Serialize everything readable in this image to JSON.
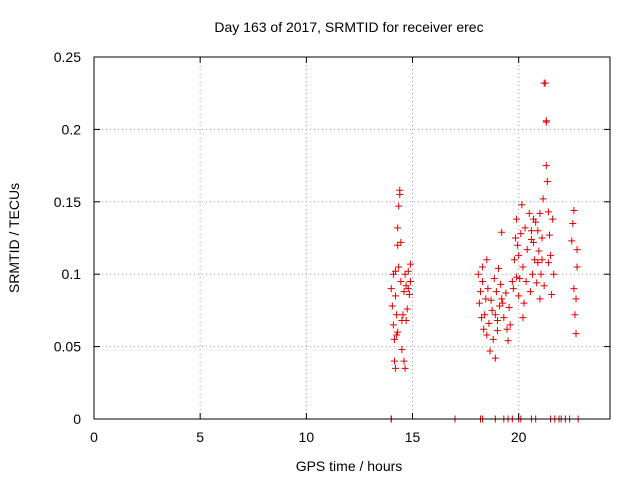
{
  "chart_data": {
    "type": "scatter",
    "title": "Day 163 of 2017, SRMTID for receiver erec",
    "xlabel": "GPS time / hours",
    "ylabel": "SRMTID / TECUs",
    "xlim": [
      0,
      24.3
    ],
    "ylim": [
      0,
      0.25
    ],
    "xticks": [
      0,
      5,
      10,
      15,
      20
    ],
    "xtick_labels": [
      "0",
      "5",
      "10",
      "15",
      "20"
    ],
    "yticks": [
      0,
      0.05,
      0.1,
      0.15,
      0.2,
      0.25
    ],
    "ytick_labels": [
      "0",
      "0.05",
      "0.1",
      "0.15",
      "0.2",
      "0.25"
    ],
    "grid": true,
    "marker": "+",
    "color": "#e00000",
    "series": [
      {
        "name": "SRMTID",
        "points": [
          [
            14.0,
            0.0
          ],
          [
            14.0,
            0.0
          ],
          [
            17.0,
            0.0
          ],
          [
            18.2,
            0.0
          ],
          [
            18.3,
            0.0
          ],
          [
            18.9,
            0.0
          ],
          [
            19.3,
            0.0
          ],
          [
            19.5,
            0.0
          ],
          [
            19.7,
            0.0
          ],
          [
            20.0,
            0.0
          ],
          [
            20.1,
            0.0
          ],
          [
            20.6,
            0.0
          ],
          [
            20.8,
            0.0
          ],
          [
            21.5,
            0.0
          ],
          [
            21.7,
            0.0
          ],
          [
            21.9,
            0.0
          ],
          [
            22.0,
            0.0
          ],
          [
            22.2,
            0.0
          ],
          [
            22.4,
            0.0
          ],
          [
            22.8,
            0.0
          ],
          [
            14.0,
            0.09
          ],
          [
            14.05,
            0.078
          ],
          [
            14.1,
            0.065
          ],
          [
            14.1,
            0.1
          ],
          [
            14.15,
            0.055
          ],
          [
            14.15,
            0.04
          ],
          [
            14.2,
            0.085
          ],
          [
            14.2,
            0.102
          ],
          [
            14.25,
            0.058
          ],
          [
            14.3,
            0.12
          ],
          [
            14.3,
            0.132
          ],
          [
            14.35,
            0.147
          ],
          [
            14.4,
            0.155
          ],
          [
            14.4,
            0.158
          ],
          [
            14.35,
            0.105
          ],
          [
            14.45,
            0.095
          ],
          [
            14.45,
            0.122
          ],
          [
            14.5,
            0.068
          ],
          [
            14.55,
            0.072
          ],
          [
            14.6,
            0.04
          ],
          [
            14.6,
            0.088
          ],
          [
            14.65,
            0.1
          ],
          [
            14.7,
            0.092
          ],
          [
            14.75,
            0.076
          ],
          [
            14.8,
            0.102
          ],
          [
            14.85,
            0.086
          ],
          [
            14.9,
            0.107
          ],
          [
            14.9,
            0.095
          ],
          [
            14.2,
            0.035
          ],
          [
            14.3,
            0.06
          ],
          [
            14.5,
            0.048
          ],
          [
            14.7,
            0.068
          ],
          [
            14.8,
            0.09
          ],
          [
            14.25,
            0.072
          ],
          [
            14.65,
            0.035
          ],
          [
            18.1,
            0.1
          ],
          [
            18.15,
            0.08
          ],
          [
            18.2,
            0.088
          ],
          [
            18.25,
            0.07
          ],
          [
            18.3,
            0.095
          ],
          [
            18.35,
            0.062
          ],
          [
            18.4,
            0.072
          ],
          [
            18.45,
            0.083
          ],
          [
            18.5,
            0.058
          ],
          [
            18.55,
            0.09
          ],
          [
            18.6,
            0.066
          ],
          [
            18.65,
            0.047
          ],
          [
            18.7,
            0.082
          ],
          [
            18.75,
            0.075
          ],
          [
            18.8,
            0.055
          ],
          [
            18.85,
            0.097
          ],
          [
            18.9,
            0.072
          ],
          [
            18.95,
            0.088
          ],
          [
            19.0,
            0.061
          ],
          [
            19.05,
            0.104
          ],
          [
            19.1,
            0.078
          ],
          [
            19.15,
            0.093
          ],
          [
            19.2,
            0.129
          ],
          [
            19.25,
            0.08
          ],
          [
            19.3,
            0.07
          ],
          [
            19.4,
            0.087
          ],
          [
            19.45,
            0.062
          ],
          [
            19.5,
            0.054
          ],
          [
            19.55,
            0.077
          ],
          [
            19.6,
            0.065
          ],
          [
            19.7,
            0.095
          ],
          [
            19.75,
            0.09
          ],
          [
            19.8,
            0.11
          ],
          [
            19.85,
            0.125
          ],
          [
            19.9,
            0.138
          ],
          [
            19.95,
            0.12
          ],
          [
            20.0,
            0.113
          ],
          [
            20.05,
            0.097
          ],
          [
            20.1,
            0.128
          ],
          [
            20.15,
            0.148
          ],
          [
            20.2,
            0.105
          ],
          [
            20.25,
            0.08
          ],
          [
            20.3,
            0.132
          ],
          [
            20.35,
            0.095
          ],
          [
            20.4,
            0.117
          ],
          [
            20.5,
            0.142
          ],
          [
            20.55,
            0.088
          ],
          [
            20.6,
            0.124
          ],
          [
            20.65,
            0.1
          ],
          [
            20.7,
            0.122
          ],
          [
            20.75,
            0.11
          ],
          [
            20.8,
            0.136
          ],
          [
            20.85,
            0.094
          ],
          [
            20.9,
            0.13
          ],
          [
            20.95,
            0.116
          ],
          [
            21.0,
            0.083
          ],
          [
            21.05,
            0.1
          ],
          [
            21.1,
            0.125
          ],
          [
            21.15,
            0.152
          ],
          [
            21.2,
            0.232
          ],
          [
            21.25,
            0.232
          ],
          [
            21.3,
            0.206
          ],
          [
            21.3,
            0.205
          ],
          [
            21.3,
            0.175
          ],
          [
            21.35,
            0.164
          ],
          [
            21.4,
            0.143
          ],
          [
            21.45,
            0.127
          ],
          [
            21.5,
            0.113
          ],
          [
            21.55,
            0.086
          ],
          [
            21.6,
            0.138
          ],
          [
            21.65,
            0.1
          ],
          [
            22.5,
            0.123
          ],
          [
            22.55,
            0.135
          ],
          [
            22.6,
            0.144
          ],
          [
            22.6,
            0.09
          ],
          [
            22.65,
            0.072
          ],
          [
            22.7,
            0.083
          ],
          [
            22.7,
            0.059
          ],
          [
            22.75,
            0.117
          ],
          [
            22.75,
            0.105
          ],
          [
            18.3,
            0.105
          ],
          [
            18.5,
            0.11
          ],
          [
            18.9,
            0.042
          ],
          [
            19.0,
            0.068
          ],
          [
            19.2,
            0.083
          ],
          [
            20.0,
            0.085
          ],
          [
            20.2,
            0.07
          ],
          [
            20.7,
            0.138
          ],
          [
            21.0,
            0.142
          ],
          [
            21.2,
            0.092
          ],
          [
            21.4,
            0.108
          ],
          [
            19.9,
            0.098
          ],
          [
            20.6,
            0.13
          ],
          [
            20.9,
            0.108
          ],
          [
            21.1,
            0.11
          ]
        ]
      }
    ]
  }
}
